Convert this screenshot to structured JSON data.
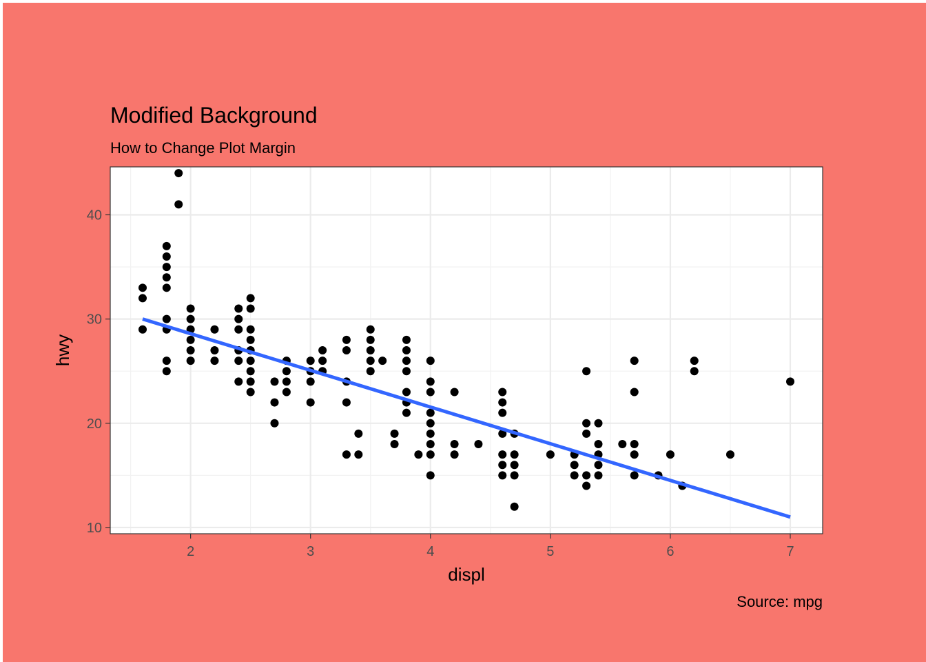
{
  "colors": {
    "plot_background": "#F8766D",
    "panel_background": "#FFFFFF",
    "grid_major": "#EBEBEB",
    "grid_minor": "#F2F2F2",
    "panel_border": "#333333",
    "point": "#000000",
    "fit_line": "#3366FF",
    "tick_text": "#4D4D4D"
  },
  "chart_data": {
    "type": "scatter",
    "title": "Modified Background",
    "subtitle": "How to Change Plot Margin",
    "caption": "Source: mpg",
    "xlabel": "displ",
    "ylabel": "hwy",
    "xlim": [
      1.33,
      7.27
    ],
    "ylim": [
      9.4,
      44.6
    ],
    "x_ticks": [
      2,
      3,
      4,
      5,
      6,
      7
    ],
    "x_tick_labels": [
      "2",
      "3",
      "4",
      "5",
      "6",
      "7"
    ],
    "y_ticks": [
      10,
      20,
      30,
      40
    ],
    "y_tick_labels": [
      "10",
      "20",
      "30",
      "40"
    ],
    "grid": true,
    "legend": "none",
    "points": [
      [
        1.6,
        33
      ],
      [
        1.6,
        32
      ],
      [
        1.6,
        29
      ],
      [
        1.8,
        37
      ],
      [
        1.8,
        36
      ],
      [
        1.8,
        35
      ],
      [
        1.8,
        34
      ],
      [
        1.8,
        33
      ],
      [
        1.8,
        30
      ],
      [
        1.8,
        29
      ],
      [
        1.8,
        26
      ],
      [
        1.8,
        25
      ],
      [
        1.9,
        44
      ],
      [
        1.9,
        41
      ],
      [
        2.0,
        31
      ],
      [
        2.0,
        30
      ],
      [
        2.0,
        29
      ],
      [
        2.0,
        28
      ],
      [
        2.0,
        27
      ],
      [
        2.0,
        26
      ],
      [
        2.2,
        29
      ],
      [
        2.2,
        27
      ],
      [
        2.2,
        26
      ],
      [
        2.4,
        31
      ],
      [
        2.4,
        30
      ],
      [
        2.4,
        29
      ],
      [
        2.4,
        27
      ],
      [
        2.4,
        26
      ],
      [
        2.4,
        24
      ],
      [
        2.5,
        32
      ],
      [
        2.5,
        31
      ],
      [
        2.5,
        29
      ],
      [
        2.5,
        28
      ],
      [
        2.5,
        27
      ],
      [
        2.5,
        26
      ],
      [
        2.5,
        25
      ],
      [
        2.5,
        24
      ],
      [
        2.5,
        23
      ],
      [
        2.7,
        24
      ],
      [
        2.7,
        22
      ],
      [
        2.7,
        20
      ],
      [
        2.8,
        26
      ],
      [
        2.8,
        25
      ],
      [
        2.8,
        24
      ],
      [
        2.8,
        23
      ],
      [
        3.0,
        26
      ],
      [
        3.0,
        25
      ],
      [
        3.0,
        24
      ],
      [
        3.0,
        22
      ],
      [
        3.1,
        27
      ],
      [
        3.1,
        26
      ],
      [
        3.1,
        25
      ],
      [
        3.3,
        28
      ],
      [
        3.3,
        27
      ],
      [
        3.3,
        24
      ],
      [
        3.3,
        22
      ],
      [
        3.3,
        17
      ],
      [
        3.4,
        19
      ],
      [
        3.4,
        17
      ],
      [
        3.5,
        29
      ],
      [
        3.5,
        28
      ],
      [
        3.5,
        27
      ],
      [
        3.5,
        26
      ],
      [
        3.5,
        25
      ],
      [
        3.6,
        26
      ],
      [
        3.7,
        19
      ],
      [
        3.7,
        18
      ],
      [
        3.8,
        28
      ],
      [
        3.8,
        27
      ],
      [
        3.8,
        26
      ],
      [
        3.8,
        25
      ],
      [
        3.8,
        23
      ],
      [
        3.8,
        22
      ],
      [
        3.8,
        21
      ],
      [
        3.9,
        17
      ],
      [
        4.0,
        26
      ],
      [
        4.0,
        24
      ],
      [
        4.0,
        23
      ],
      [
        4.0,
        21
      ],
      [
        4.0,
        20
      ],
      [
        4.0,
        19
      ],
      [
        4.0,
        18
      ],
      [
        4.0,
        17
      ],
      [
        4.0,
        15
      ],
      [
        4.2,
        23
      ],
      [
        4.2,
        18
      ],
      [
        4.2,
        17
      ],
      [
        4.4,
        18
      ],
      [
        4.6,
        23
      ],
      [
        4.6,
        22
      ],
      [
        4.6,
        21
      ],
      [
        4.6,
        19
      ],
      [
        4.6,
        17
      ],
      [
        4.6,
        16
      ],
      [
        4.6,
        15
      ],
      [
        4.7,
        19
      ],
      [
        4.7,
        17
      ],
      [
        4.7,
        16
      ],
      [
        4.7,
        15
      ],
      [
        4.7,
        12
      ],
      [
        5.0,
        17
      ],
      [
        5.2,
        17
      ],
      [
        5.2,
        16
      ],
      [
        5.2,
        15
      ],
      [
        5.3,
        25
      ],
      [
        5.3,
        20
      ],
      [
        5.3,
        19
      ],
      [
        5.3,
        15
      ],
      [
        5.3,
        14
      ],
      [
        5.4,
        20
      ],
      [
        5.4,
        18
      ],
      [
        5.4,
        17
      ],
      [
        5.4,
        16
      ],
      [
        5.4,
        15
      ],
      [
        5.6,
        18
      ],
      [
        5.7,
        26
      ],
      [
        5.7,
        23
      ],
      [
        5.7,
        18
      ],
      [
        5.7,
        17
      ],
      [
        5.7,
        15
      ],
      [
        5.9,
        15
      ],
      [
        6.0,
        17
      ],
      [
        6.1,
        14
      ],
      [
        6.2,
        26
      ],
      [
        6.2,
        25
      ],
      [
        6.5,
        17
      ],
      [
        7.0,
        24
      ]
    ],
    "fit_line": {
      "x": [
        1.6,
        7.0
      ],
      "y": [
        30.0,
        11.0
      ]
    }
  }
}
